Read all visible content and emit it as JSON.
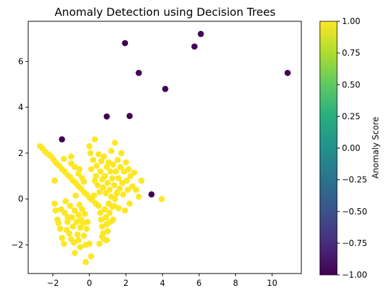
{
  "chart_data": {
    "type": "scatter",
    "title": "Anomaly Detection using Decision Trees",
    "xlabel": "",
    "ylabel": "",
    "xlim": [
      -3.35,
      11.6
    ],
    "ylim": [
      -3.25,
      7.75
    ],
    "xticks": [
      -2,
      0,
      2,
      4,
      6,
      8,
      10
    ],
    "yticks": [
      -2,
      0,
      2,
      4,
      6
    ],
    "xtick_labels": [
      "−2",
      "0",
      "2",
      "4",
      "6",
      "8",
      "10"
    ],
    "ytick_labels": [
      "−2",
      "0",
      "2",
      "4",
      "6"
    ],
    "grid": false,
    "colormap": "viridis",
    "colorbar": {
      "label": "Anomaly Score",
      "range": [
        -1.0,
        1.0
      ],
      "ticks": [
        1.0,
        0.75,
        0.5,
        0.25,
        0.0,
        -0.25,
        -0.5,
        -0.75,
        -1.0
      ],
      "tick_labels": [
        "1.00",
        "0.75",
        "0.50",
        "0.25",
        "0.00",
        "−0.25",
        "−0.50",
        "−0.75",
        "−1.00"
      ]
    },
    "anomaly_color": "#440154",
    "normal_color": "#fde725",
    "points": [
      {
        "x": -1.5,
        "y": 2.6,
        "score": -1
      },
      {
        "x": 0.95,
        "y": 3.6,
        "score": -1
      },
      {
        "x": 2.2,
        "y": 3.62,
        "score": -1
      },
      {
        "x": 1.95,
        "y": 6.8,
        "score": -1
      },
      {
        "x": 2.7,
        "y": 5.5,
        "score": -1
      },
      {
        "x": 4.15,
        "y": 4.8,
        "score": -1
      },
      {
        "x": 5.75,
        "y": 6.65,
        "score": -1
      },
      {
        "x": 6.1,
        "y": 7.2,
        "score": -1
      },
      {
        "x": 10.85,
        "y": 5.5,
        "score": -1
      },
      {
        "x": 3.4,
        "y": 0.2,
        "score": -1
      },
      {
        "x": -2.7,
        "y": 2.3,
        "score": 1
      },
      {
        "x": -2.55,
        "y": 2.2,
        "score": 1
      },
      {
        "x": -2.4,
        "y": 2.05,
        "score": 1
      },
      {
        "x": -2.25,
        "y": 1.95,
        "score": 1
      },
      {
        "x": -2.1,
        "y": 1.85,
        "score": 1
      },
      {
        "x": -1.95,
        "y": 1.7,
        "score": 1
      },
      {
        "x": -1.8,
        "y": 1.55,
        "score": 1
      },
      {
        "x": -1.65,
        "y": 1.45,
        "score": 1
      },
      {
        "x": -1.5,
        "y": 1.3,
        "score": 1
      },
      {
        "x": -1.35,
        "y": 1.2,
        "score": 1
      },
      {
        "x": -1.2,
        "y": 1.05,
        "score": 1
      },
      {
        "x": -1.05,
        "y": 0.95,
        "score": 1
      },
      {
        "x": -0.9,
        "y": 0.8,
        "score": 1
      },
      {
        "x": -0.75,
        "y": 0.7,
        "score": 1
      },
      {
        "x": -0.6,
        "y": 0.55,
        "score": 1
      },
      {
        "x": -0.45,
        "y": 0.45,
        "score": 1
      },
      {
        "x": -0.3,
        "y": 0.3,
        "score": 1
      },
      {
        "x": -0.15,
        "y": 0.2,
        "score": 1
      },
      {
        "x": 0.0,
        "y": 0.05,
        "score": 1
      },
      {
        "x": 0.15,
        "y": -0.05,
        "score": 1
      },
      {
        "x": 0.35,
        "y": -0.2,
        "score": 1
      },
      {
        "x": -1.0,
        "y": 1.55,
        "score": 1
      },
      {
        "x": -0.8,
        "y": 1.4,
        "score": 1
      },
      {
        "x": -0.6,
        "y": 1.1,
        "score": 1
      },
      {
        "x": -0.4,
        "y": 0.9,
        "score": 1
      },
      {
        "x": -1.9,
        "y": 0.8,
        "score": 1
      },
      {
        "x": -1.4,
        "y": 1.75,
        "score": 1
      },
      {
        "x": -1.0,
        "y": 1.85,
        "score": 1
      },
      {
        "x": -0.55,
        "y": 1.3,
        "score": 1
      },
      {
        "x": -0.3,
        "y": 0.75,
        "score": 1
      },
      {
        "x": -1.9,
        "y": -0.2,
        "score": 1
      },
      {
        "x": -1.85,
        "y": -0.5,
        "score": 1
      },
      {
        "x": -1.75,
        "y": -0.9,
        "score": 1
      },
      {
        "x": -1.6,
        "y": -1.3,
        "score": 1
      },
      {
        "x": -1.5,
        "y": -1.7,
        "score": 1
      },
      {
        "x": -1.4,
        "y": -1.95,
        "score": 1
      },
      {
        "x": -1.35,
        "y": -0.6,
        "score": 1
      },
      {
        "x": -1.3,
        "y": -0.1,
        "score": 1
      },
      {
        "x": -1.2,
        "y": -1.0,
        "score": 1
      },
      {
        "x": -1.1,
        "y": -1.5,
        "score": 1
      },
      {
        "x": -1.05,
        "y": -0.3,
        "score": 1
      },
      {
        "x": -0.95,
        "y": -0.8,
        "score": 1
      },
      {
        "x": -0.9,
        "y": -1.2,
        "score": 1
      },
      {
        "x": -0.85,
        "y": -1.9,
        "score": 1
      },
      {
        "x": -0.8,
        "y": -0.5,
        "score": 1
      },
      {
        "x": -0.75,
        "y": 0.15,
        "score": 1
      },
      {
        "x": -0.7,
        "y": -1.0,
        "score": 1
      },
      {
        "x": -0.65,
        "y": -1.55,
        "score": 1
      },
      {
        "x": -0.6,
        "y": -0.7,
        "score": 1
      },
      {
        "x": -0.55,
        "y": -0.25,
        "score": 1
      },
      {
        "x": -0.5,
        "y": -1.25,
        "score": 1
      },
      {
        "x": -0.45,
        "y": -0.9,
        "score": 1
      },
      {
        "x": -0.4,
        "y": -0.45,
        "score": 1
      },
      {
        "x": -0.35,
        "y": -1.05,
        "score": 1
      },
      {
        "x": -0.3,
        "y": -1.6,
        "score": 1
      },
      {
        "x": -0.25,
        "y": -0.65,
        "score": 1
      },
      {
        "x": -0.2,
        "y": -2.0,
        "score": 1
      },
      {
        "x": -0.15,
        "y": -1.3,
        "score": 1
      },
      {
        "x": -0.1,
        "y": -1.0,
        "score": 1
      },
      {
        "x": -0.6,
        "y": -1.8,
        "score": 1
      },
      {
        "x": -0.8,
        "y": -2.35,
        "score": 1
      },
      {
        "x": -1.0,
        "y": -1.75,
        "score": 1
      },
      {
        "x": -1.25,
        "y": -1.35,
        "score": 1
      },
      {
        "x": -1.7,
        "y": -1.05,
        "score": 1
      },
      {
        "x": -1.55,
        "y": -0.45,
        "score": 1
      },
      {
        "x": -1.2,
        "y": -0.8,
        "score": 1
      },
      {
        "x": 0.0,
        "y": -1.95,
        "score": 1
      },
      {
        "x": -0.5,
        "y": -2.1,
        "score": 1
      },
      {
        "x": -0.2,
        "y": -2.75,
        "score": 1
      },
      {
        "x": 0.1,
        "y": -2.5,
        "score": 1
      },
      {
        "x": 0.5,
        "y": -0.3,
        "score": 1
      },
      {
        "x": 0.6,
        "y": -0.6,
        "score": 1
      },
      {
        "x": 0.65,
        "y": -0.9,
        "score": 1
      },
      {
        "x": 0.7,
        "y": -1.2,
        "score": 1
      },
      {
        "x": 0.75,
        "y": -1.5,
        "score": 1
      },
      {
        "x": 0.8,
        "y": -1.75,
        "score": 1
      },
      {
        "x": 0.85,
        "y": -0.45,
        "score": 1
      },
      {
        "x": 0.9,
        "y": -0.8,
        "score": 1
      },
      {
        "x": 0.95,
        "y": -1.1,
        "score": 1
      },
      {
        "x": 1.0,
        "y": -1.4,
        "score": 1
      },
      {
        "x": 1.05,
        "y": -0.2,
        "score": 1
      },
      {
        "x": 1.1,
        "y": -0.6,
        "score": 1
      },
      {
        "x": 1.15,
        "y": -1.0,
        "score": 1
      },
      {
        "x": 1.2,
        "y": 0.1,
        "score": 1
      },
      {
        "x": 1.25,
        "y": -0.35,
        "score": 1
      },
      {
        "x": 0.55,
        "y": -1.95,
        "score": 1
      },
      {
        "x": 0.7,
        "y": -1.65,
        "score": 1
      },
      {
        "x": 1.3,
        "y": -0.9,
        "score": 1
      },
      {
        "x": 0.95,
        "y": -1.8,
        "score": 1
      },
      {
        "x": 1.4,
        "y": 0.0,
        "score": 1
      },
      {
        "x": 0.0,
        "y": 2.3,
        "score": 1
      },
      {
        "x": 0.05,
        "y": 2.0,
        "score": 1
      },
      {
        "x": 0.1,
        "y": 1.3,
        "score": 1
      },
      {
        "x": 0.2,
        "y": 1.7,
        "score": 1
      },
      {
        "x": 0.3,
        "y": 2.6,
        "score": 1
      },
      {
        "x": 0.35,
        "y": 1.0,
        "score": 1
      },
      {
        "x": 0.4,
        "y": 1.45,
        "score": 1
      },
      {
        "x": 0.45,
        "y": 0.6,
        "score": 1
      },
      {
        "x": 0.5,
        "y": 1.95,
        "score": 1
      },
      {
        "x": 0.55,
        "y": 0.3,
        "score": 1
      },
      {
        "x": 0.6,
        "y": 1.2,
        "score": 1
      },
      {
        "x": 0.65,
        "y": 1.65,
        "score": 1
      },
      {
        "x": 0.7,
        "y": 0.85,
        "score": 1
      },
      {
        "x": 0.75,
        "y": 0.5,
        "score": 1
      },
      {
        "x": 0.8,
        "y": 1.85,
        "score": 1
      },
      {
        "x": 0.85,
        "y": 1.0,
        "score": 1
      },
      {
        "x": 0.9,
        "y": 0.25,
        "score": 1
      },
      {
        "x": 0.95,
        "y": 1.4,
        "score": 1
      },
      {
        "x": 1.0,
        "y": 0.7,
        "score": 1
      },
      {
        "x": 1.05,
        "y": 1.6,
        "score": 1
      },
      {
        "x": 1.1,
        "y": 0.4,
        "score": 1
      },
      {
        "x": 1.15,
        "y": 1.2,
        "score": 1
      },
      {
        "x": 1.2,
        "y": 2.1,
        "score": 1
      },
      {
        "x": 1.25,
        "y": 0.9,
        "score": 1
      },
      {
        "x": 1.3,
        "y": 1.5,
        "score": 1
      },
      {
        "x": 1.35,
        "y": 0.6,
        "score": 1
      },
      {
        "x": 1.4,
        "y": 2.45,
        "score": 1
      },
      {
        "x": 1.45,
        "y": 1.2,
        "score": 1
      },
      {
        "x": 1.5,
        "y": 0.25,
        "score": 1
      },
      {
        "x": 1.55,
        "y": 1.7,
        "score": 1
      },
      {
        "x": 1.6,
        "y": 0.9,
        "score": 1
      },
      {
        "x": 1.65,
        "y": 0.45,
        "score": 1
      },
      {
        "x": 1.7,
        "y": 1.4,
        "score": 1
      },
      {
        "x": 1.75,
        "y": 2.0,
        "score": 1
      },
      {
        "x": 1.8,
        "y": 0.7,
        "score": 1
      },
      {
        "x": 1.85,
        "y": 0.2,
        "score": 1
      },
      {
        "x": 1.9,
        "y": 1.2,
        "score": 1
      },
      {
        "x": 1.95,
        "y": -0.5,
        "score": 1
      },
      {
        "x": 2.0,
        "y": 1.6,
        "score": 1
      },
      {
        "x": 2.05,
        "y": 0.8,
        "score": 1
      },
      {
        "x": 2.1,
        "y": 0.4,
        "score": 1
      },
      {
        "x": 2.15,
        "y": 1.3,
        "score": 1
      },
      {
        "x": 2.2,
        "y": -0.2,
        "score": 1
      },
      {
        "x": 2.25,
        "y": 1.0,
        "score": 1
      },
      {
        "x": 2.35,
        "y": 0.55,
        "score": 1
      },
      {
        "x": 2.45,
        "y": 1.15,
        "score": 1
      },
      {
        "x": 2.55,
        "y": 0.4,
        "score": 1
      },
      {
        "x": 2.7,
        "y": 0.1,
        "score": 1
      },
      {
        "x": 2.85,
        "y": 0.8,
        "score": 1
      },
      {
        "x": 1.6,
        "y": -0.4,
        "score": 1
      },
      {
        "x": 1.35,
        "y": -0.3,
        "score": 1
      },
      {
        "x": 3.95,
        "y": 0.0,
        "score": 1
      },
      {
        "x": 0.25,
        "y": 0.15,
        "score": 1
      },
      {
        "x": 0.3,
        "y": 0.8,
        "score": 1
      }
    ]
  }
}
